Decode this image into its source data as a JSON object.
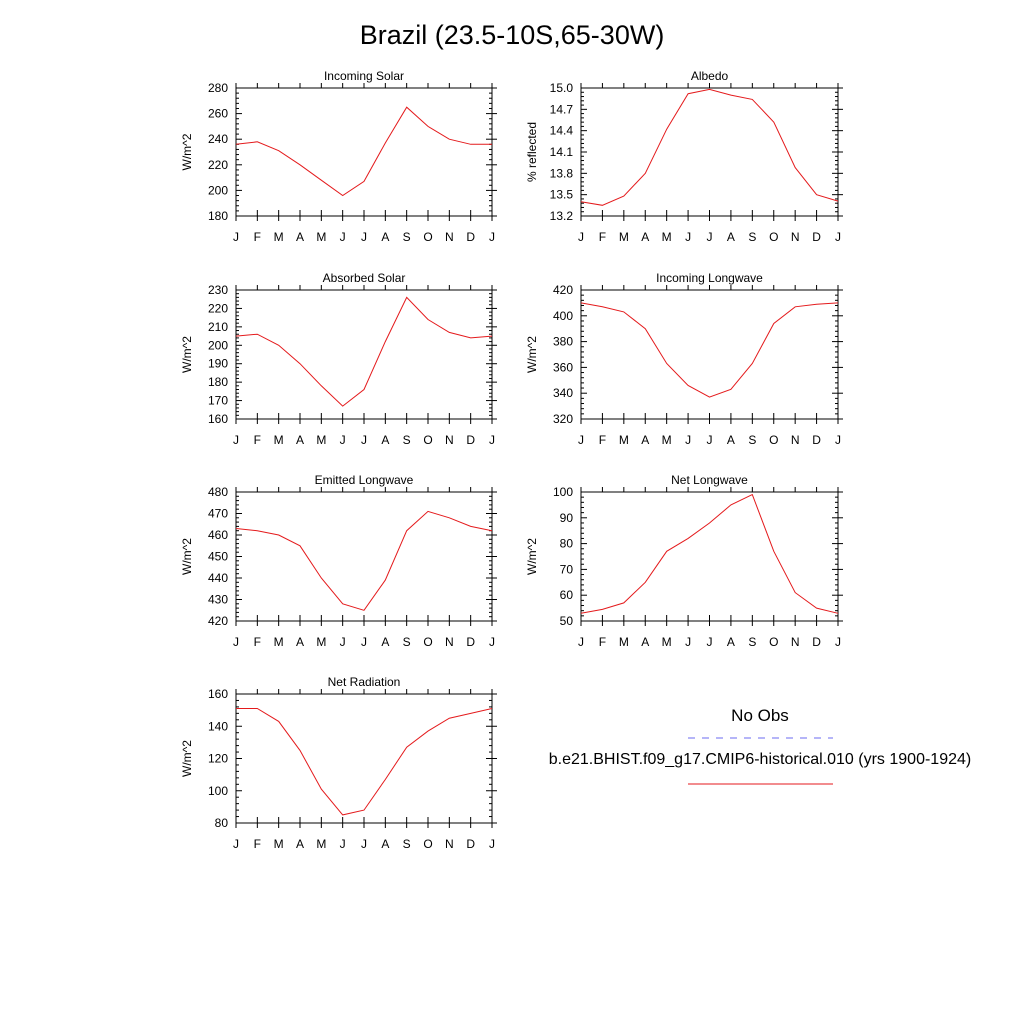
{
  "title": "Brazil (23.5-10S,65-30W)",
  "months": [
    "J",
    "F",
    "M",
    "A",
    "M",
    "J",
    "J",
    "A",
    "S",
    "O",
    "N",
    "D",
    "J"
  ],
  "legend": {
    "obs_label": "No Obs",
    "obs_color": "#6b6bf0",
    "model_label": "b.e21.BHIST.f09_g17.CMIP6-historical.010 (yrs 1900-1924)",
    "model_color": "#e41a1c"
  },
  "chart_data": [
    {
      "type": "line",
      "title": "Incoming Solar",
      "ylabel": "W/m^2",
      "ylim": [
        180,
        280
      ],
      "yticks": [
        180,
        200,
        220,
        240,
        260,
        280
      ],
      "values": [
        236,
        238,
        231,
        220,
        208,
        196,
        207,
        237,
        265,
        250,
        240,
        236,
        236
      ]
    },
    {
      "type": "line",
      "title": "Albedo",
      "ylabel": "% reflected",
      "ylim": [
        13.2,
        15.0
      ],
      "yticks": [
        "13.2",
        "13.5",
        "13.8",
        "14.1",
        "14.4",
        "14.7",
        "15.0"
      ],
      "values": [
        13.4,
        13.35,
        13.48,
        13.8,
        14.42,
        14.92,
        14.98,
        14.9,
        14.84,
        14.52,
        13.88,
        13.5,
        13.41
      ]
    },
    {
      "type": "line",
      "title": "Absorbed Solar",
      "ylabel": "W/m^2",
      "ylim": [
        160,
        230
      ],
      "yticks": [
        160,
        170,
        180,
        190,
        200,
        210,
        220,
        230
      ],
      "values": [
        205,
        206,
        200,
        190,
        178,
        167,
        176,
        202,
        226,
        214,
        207,
        204,
        205
      ]
    },
    {
      "type": "line",
      "title": "Incoming Longwave",
      "ylabel": "W/m^2",
      "ylim": [
        320,
        420
      ],
      "yticks": [
        320,
        340,
        360,
        380,
        400,
        420
      ],
      "values": [
        410,
        407,
        403,
        390,
        363,
        346,
        337,
        343,
        363,
        394,
        407,
        409,
        410
      ]
    },
    {
      "type": "line",
      "title": "Emitted Longwave",
      "ylabel": "W/m^2",
      "ylim": [
        420,
        480
      ],
      "yticks": [
        420,
        430,
        440,
        450,
        460,
        470,
        480
      ],
      "values": [
        463,
        462,
        460,
        455,
        440,
        428,
        425,
        439,
        462,
        471,
        468,
        464,
        462
      ]
    },
    {
      "type": "line",
      "title": "Net Longwave",
      "ylabel": "W/m^2",
      "ylim": [
        50,
        100
      ],
      "yticks": [
        50,
        60,
        70,
        80,
        90,
        100
      ],
      "values": [
        53,
        54.5,
        57,
        65,
        77,
        82,
        88,
        95,
        99,
        77,
        61,
        55,
        53
      ]
    },
    {
      "type": "line",
      "title": "Net Radiation",
      "ylabel": "W/m^2",
      "ylim": [
        80,
        160
      ],
      "yticks": [
        80,
        100,
        120,
        140,
        160
      ],
      "values": [
        151,
        151,
        143,
        125,
        101,
        85,
        88,
        107,
        127,
        137,
        145,
        148,
        151
      ]
    }
  ]
}
